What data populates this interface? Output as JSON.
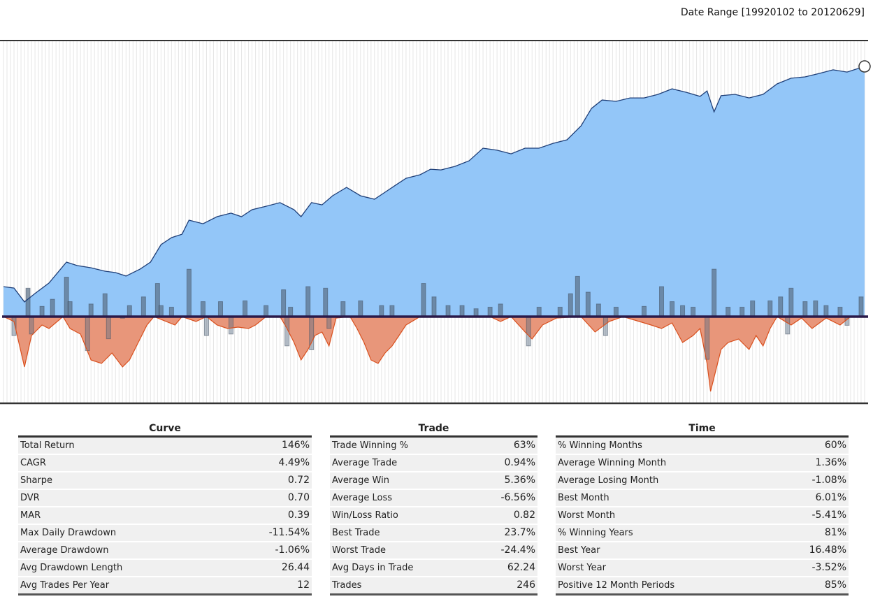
{
  "header": {
    "date_range": "Date Range [19920102 to 20120629]"
  },
  "colors": {
    "equity_fill": "#93c6f8",
    "equity_line": "#1f3f78",
    "drawdown_fill": "#e8967a",
    "drawdown_line": "#d9501e",
    "bar": "#5a6f86",
    "baseline": "#2a1a4a",
    "grid": "#e6e6e6"
  },
  "chart_data": {
    "type": "area",
    "x_unit": "months since 1992-01",
    "xlim": [
      0,
      246
    ],
    "grid": true,
    "series": [
      {
        "name": "Equity (cumulative return %)",
        "type": "area",
        "x": [
          0,
          3,
          6,
          9,
          13,
          18,
          21,
          25,
          29,
          32,
          35,
          39,
          42,
          45,
          48,
          51,
          53,
          57,
          61,
          65,
          68,
          71,
          75,
          79,
          83,
          85,
          88,
          91,
          94,
          98,
          102,
          106,
          109,
          112,
          115,
          119,
          122,
          125,
          129,
          133,
          137,
          141,
          145,
          149,
          153,
          157,
          161,
          165,
          168,
          171,
          175,
          179,
          183,
          187,
          191,
          195,
          199,
          201,
          203,
          205,
          209,
          213,
          217,
          221,
          225,
          229,
          233,
          237,
          241,
          246
        ],
        "y": [
          17.5,
          16.7,
          8.6,
          13.5,
          19.6,
          31.8,
          29.8,
          28.5,
          26.5,
          25.7,
          23.7,
          27.7,
          31.8,
          42.0,
          46.1,
          48.1,
          56.3,
          54.2,
          58.3,
          60.4,
          58.3,
          62.4,
          64.4,
          66.5,
          62.4,
          58.3,
          66.5,
          65.2,
          70.5,
          75.4,
          70.5,
          68.5,
          72.6,
          76.7,
          80.7,
          82.8,
          86.0,
          85.6,
          87.7,
          90.9,
          98.3,
          97.1,
          95.0,
          98.3,
          98.3,
          101.1,
          103.2,
          111.3,
          121.5,
          126.4,
          125.6,
          127.6,
          127.6,
          129.7,
          132.9,
          130.9,
          128.5,
          131.7,
          119.5,
          128.9,
          129.7,
          127.6,
          129.7,
          135.8,
          139.1,
          139.9,
          141.9,
          144.0,
          142.7,
          146.0
        ]
      },
      {
        "name": "Drawdown (%)",
        "type": "area",
        "x": [
          0,
          3,
          6,
          8,
          11,
          13,
          17,
          19,
          22,
          25,
          28,
          31,
          34,
          36,
          38,
          41,
          43,
          49,
          51,
          55,
          58,
          61,
          64,
          67,
          70,
          72,
          75,
          79,
          81,
          83,
          85,
          87,
          89,
          91,
          93,
          95,
          99,
          101,
          103,
          105,
          107,
          109,
          111,
          113,
          115,
          119,
          139,
          142,
          145,
          149,
          151,
          154,
          158,
          165,
          169,
          173,
          177,
          185,
          188,
          191,
          194,
          197,
          199,
          201,
          202,
          203,
          205,
          207,
          210,
          213,
          215,
          217,
          219,
          221,
          225,
          228,
          231,
          235,
          239,
          242,
          246
        ],
        "y": [
          0,
          -0.76,
          -7.77,
          -2.91,
          -1.29,
          -1.83,
          0,
          -1.83,
          -2.7,
          -6.69,
          -7.23,
          -5.61,
          -7.77,
          -6.69,
          -4.53,
          -1.29,
          0,
          -1.29,
          0,
          -0.76,
          0,
          -1.29,
          -1.83,
          -1.62,
          -1.83,
          -1.29,
          0,
          0,
          -1.83,
          -3.99,
          -6.69,
          -5.07,
          -2.91,
          -2.37,
          -4.53,
          -0.22,
          0,
          -1.83,
          -3.99,
          -6.69,
          -7.23,
          -5.61,
          -4.53,
          -2.91,
          -1.29,
          0,
          0,
          -0.76,
          0,
          -2.37,
          -3.45,
          -1.29,
          -0.22,
          0,
          -2.37,
          -0.76,
          0,
          -1.29,
          -1.83,
          -0.97,
          -3.99,
          -2.91,
          -1.83,
          -7.23,
          -11.54,
          -9.39,
          -5.07,
          -3.99,
          -3.45,
          -5.07,
          -2.91,
          -4.53,
          -1.83,
          0,
          -1.29,
          -0.22,
          -1.83,
          -0.22,
          -1.29,
          0,
          0
        ]
      },
      {
        "name": "Monthly return (%)",
        "type": "bar",
        "x": [
          3,
          7,
          8,
          11,
          14,
          18,
          19,
          24,
          25,
          29,
          30,
          34,
          36,
          40,
          44,
          45,
          48,
          53,
          57,
          58,
          62,
          65,
          69,
          75,
          80,
          81,
          82,
          87,
          88,
          92,
          93,
          97,
          102,
          108,
          111,
          120,
          123,
          127,
          131,
          135,
          139,
          142,
          150,
          153,
          159,
          162,
          164,
          167,
          170,
          172,
          175,
          183,
          188,
          191,
          194,
          197,
          201,
          203,
          207,
          211,
          214,
          219,
          222,
          224,
          225,
          229,
          232,
          235,
          239,
          241,
          245
        ],
        "y": [
          -2.4,
          3.6,
          -2.2,
          1.3,
          2.2,
          5.0,
          1.9,
          -4.3,
          1.6,
          2.9,
          -2.8,
          -0.2,
          1.4,
          2.5,
          4.2,
          1.4,
          1.2,
          6.0,
          1.9,
          -2.4,
          1.9,
          -2.2,
          2.0,
          1.4,
          3.4,
          -3.7,
          1.2,
          3.8,
          -4.2,
          3.6,
          -1.5,
          1.9,
          2.0,
          1.4,
          1.4,
          4.2,
          2.5,
          1.4,
          1.4,
          1.0,
          1.2,
          1.6,
          -3.7,
          1.2,
          1.2,
          2.9,
          5.1,
          3.1,
          1.6,
          -2.4,
          1.2,
          1.3,
          3.8,
          1.9,
          1.4,
          1.2,
          -5.41,
          6.01,
          1.2,
          1.2,
          2.0,
          2.0,
          2.5,
          -2.2,
          3.6,
          1.9,
          2.0,
          1.4,
          1.2,
          -1.1,
          2.5
        ]
      }
    ]
  },
  "tables": [
    {
      "title": "Curve",
      "rows": [
        {
          "label": "Total Return",
          "value": "146%"
        },
        {
          "label": "CAGR",
          "value": "4.49%"
        },
        {
          "label": "Sharpe",
          "value": "0.72"
        },
        {
          "label": "DVR",
          "value": "0.70"
        },
        {
          "label": "MAR",
          "value": "0.39"
        },
        {
          "label": "Max Daily Drawdown",
          "value": "-11.54%"
        },
        {
          "label": "Average Drawdown",
          "value": "-1.06%"
        },
        {
          "label": "Avg Drawdown Length",
          "value": "26.44"
        },
        {
          "label": "Avg Trades Per Year",
          "value": "12"
        }
      ]
    },
    {
      "title": "Trade",
      "rows": [
        {
          "label": "Trade Winning %",
          "value": "63%"
        },
        {
          "label": "Average Trade",
          "value": "0.94%"
        },
        {
          "label": "Average Win",
          "value": "5.36%"
        },
        {
          "label": "Average Loss",
          "value": "-6.56%"
        },
        {
          "label": "Win/Loss Ratio",
          "value": "0.82"
        },
        {
          "label": "Best Trade",
          "value": "23.7%"
        },
        {
          "label": "Worst Trade",
          "value": "-24.4%"
        },
        {
          "label": "Avg Days in Trade",
          "value": "62.24"
        },
        {
          "label": "Trades",
          "value": "246"
        }
      ]
    },
    {
      "title": "Time",
      "rows": [
        {
          "label": "% Winning Months",
          "value": "60%"
        },
        {
          "label": "Average Winning Month",
          "value": "1.36%"
        },
        {
          "label": "Average Losing Month",
          "value": "-1.08%"
        },
        {
          "label": "Best Month",
          "value": "6.01%"
        },
        {
          "label": "Worst Month",
          "value": "-5.41%"
        },
        {
          "label": "% Winning Years",
          "value": "81%"
        },
        {
          "label": "Best Year",
          "value": "16.48%"
        },
        {
          "label": "Worst Year",
          "value": "-3.52%"
        },
        {
          "label": "Positive 12 Month Periods",
          "value": "85%"
        }
      ]
    }
  ]
}
